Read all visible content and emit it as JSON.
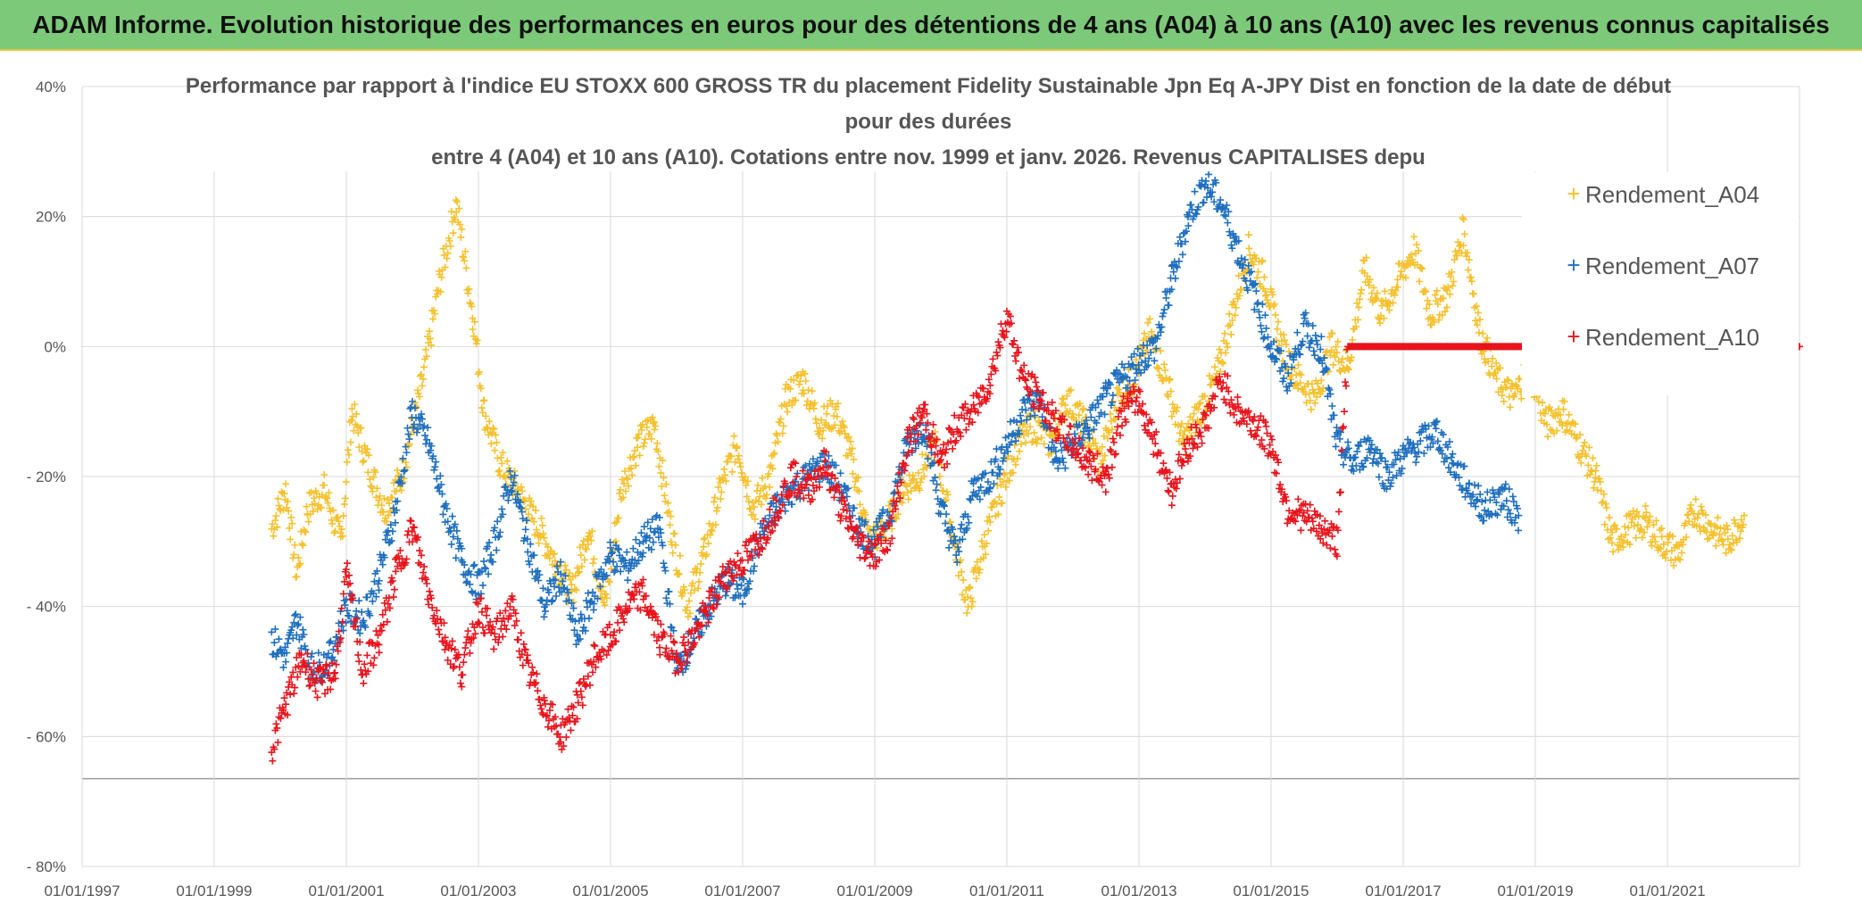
{
  "header": {
    "title": "ADAM Informe. Evolution historique des performances en euros pour des détentions de 4 ans (A04) à 10 ans (A10) avec les revenus connus capitalisés"
  },
  "colors": {
    "banner_bg": "#7cc97a",
    "A04": "#f5c12e",
    "A07": "#1f6fbf",
    "A10": "#e8141c",
    "grid": "#d9d9d9"
  },
  "chart_data": {
    "type": "scatter",
    "title_lines": [
      "Performance par rapport à l'indice EU STOXX 600 GROSS TR  du placement Fidelity Sustainable Jpn Eq A-JPY Dist en fonction de la date de début",
      "pour des durées",
      "entre 4 (A04) et 10 ans (A10). Cotations entre nov. 1999 et janv. 2026. Revenus CAPITALISES depu"
    ],
    "x_ticks": [
      "01/01/1997",
      "01/01/1999",
      "01/01/2001",
      "01/01/2003",
      "01/01/2005",
      "01/01/2007",
      "01/01/2009",
      "01/01/2011",
      "01/01/2013",
      "01/01/2015",
      "01/01/2017",
      "01/01/2019",
      "01/01/2021"
    ],
    "y_ticks": [
      "40%",
      "20%",
      "0%",
      "- 20%",
      "- 40%",
      "- 60%",
      "- 80%"
    ],
    "xlim": [
      "1997-01-01",
      "2023-01-01"
    ],
    "ylim": [
      -80,
      40
    ],
    "y_unit": "%",
    "marker": "+",
    "legend_position": "right",
    "series": [
      {
        "name": "Rendement_A04",
        "color": "#f5c12e",
        "points": [
          [
            "1999-11-15",
            -28
          ],
          [
            "2000-02-01",
            -22
          ],
          [
            "2000-04-01",
            -35
          ],
          [
            "2000-06-01",
            -25
          ],
          [
            "2000-09-01",
            -22
          ],
          [
            "2000-12-01",
            -30
          ],
          [
            "2001-02-01",
            -10
          ],
          [
            "2001-05-01",
            -18
          ],
          [
            "2001-08-01",
            -25
          ],
          [
            "2001-11-01",
            -20
          ],
          [
            "2002-03-01",
            -5
          ],
          [
            "2002-06-01",
            10
          ],
          [
            "2002-09-01",
            22
          ],
          [
            "2002-12-01",
            5
          ],
          [
            "2003-02-01",
            -10
          ],
          [
            "2003-05-01",
            -18
          ],
          [
            "2003-08-01",
            -22
          ],
          [
            "2003-12-01",
            -28
          ],
          [
            "2004-03-01",
            -33
          ],
          [
            "2004-06-01",
            -38
          ],
          [
            "2004-09-01",
            -28
          ],
          [
            "2004-12-01",
            -40
          ],
          [
            "2005-03-01",
            -22
          ],
          [
            "2005-06-01",
            -15
          ],
          [
            "2005-09-01",
            -12
          ],
          [
            "2005-12-01",
            -28
          ],
          [
            "2006-03-01",
            -40
          ],
          [
            "2006-06-01",
            -32
          ],
          [
            "2006-09-01",
            -22
          ],
          [
            "2006-12-01",
            -15
          ],
          [
            "2007-03-01",
            -25
          ],
          [
            "2007-06-01",
            -20
          ],
          [
            "2007-09-01",
            -8
          ],
          [
            "2007-12-01",
            -5
          ],
          [
            "2008-03-01",
            -12
          ],
          [
            "2008-06-01",
            -10
          ],
          [
            "2008-09-01",
            -18
          ],
          [
            "2008-12-01",
            -30
          ],
          [
            "2009-03-01",
            -28
          ],
          [
            "2009-06-01",
            -22
          ],
          [
            "2009-09-01",
            -20
          ],
          [
            "2009-12-01",
            -15
          ],
          [
            "2010-03-01",
            -28
          ],
          [
            "2010-06-01",
            -40
          ],
          [
            "2010-09-01",
            -30
          ],
          [
            "2010-12-01",
            -22
          ],
          [
            "2011-03-01",
            -15
          ],
          [
            "2011-06-01",
            -12
          ],
          [
            "2011-09-01",
            -15
          ],
          [
            "2011-12-01",
            -8
          ],
          [
            "2012-03-01",
            -12
          ],
          [
            "2012-06-01",
            -18
          ],
          [
            "2012-09-01",
            -8
          ],
          [
            "2012-12-01",
            -5
          ],
          [
            "2013-03-01",
            2
          ],
          [
            "2013-06-01",
            -5
          ],
          [
            "2013-09-01",
            -15
          ],
          [
            "2013-12-01",
            -10
          ],
          [
            "2014-03-01",
            -5
          ],
          [
            "2014-06-01",
            5
          ],
          [
            "2014-09-01",
            15
          ],
          [
            "2014-12-01",
            10
          ],
          [
            "2015-03-01",
            0
          ],
          [
            "2015-06-01",
            -5
          ],
          [
            "2015-09-01",
            -8
          ],
          [
            "2015-12-01",
            0
          ],
          [
            "2016-03-01",
            -3
          ],
          [
            "2016-06-01",
            12
          ],
          [
            "2016-09-01",
            5
          ],
          [
            "2016-12-01",
            10
          ],
          [
            "2017-03-01",
            15
          ],
          [
            "2017-06-01",
            5
          ],
          [
            "2017-09-01",
            8
          ],
          [
            "2017-12-01",
            18
          ],
          [
            "2018-03-01",
            2
          ],
          [
            "2018-06-01",
            -5
          ],
          [
            "2018-09-01",
            -8
          ],
          [
            "2018-12-01",
            -3
          ],
          [
            "2019-03-01",
            -12
          ],
          [
            "2019-06-01",
            -10
          ],
          [
            "2019-09-01",
            -15
          ],
          [
            "2019-12-01",
            -20
          ],
          [
            "2020-03-01",
            -30
          ],
          [
            "2020-06-01",
            -28
          ],
          [
            "2020-09-01",
            -27
          ],
          [
            "2020-12-01",
            -30
          ],
          [
            "2021-03-01",
            -32
          ],
          [
            "2021-06-01",
            -25
          ],
          [
            "2021-09-01",
            -28
          ],
          [
            "2021-12-01",
            -30
          ],
          [
            "2022-03-01",
            -26
          ]
        ]
      },
      {
        "name": "Rendement_A07",
        "color": "#1f6fbf",
        "points": [
          [
            "1999-11-15",
            -45
          ],
          [
            "2000-02-01",
            -48
          ],
          [
            "2000-04-01",
            -42
          ],
          [
            "2000-07-01",
            -50
          ],
          [
            "2000-10-01",
            -48
          ],
          [
            "2001-01-01",
            -40
          ],
          [
            "2001-04-01",
            -42
          ],
          [
            "2001-07-01",
            -35
          ],
          [
            "2001-10-01",
            -25
          ],
          [
            "2002-01-01",
            -10
          ],
          [
            "2002-04-01",
            -15
          ],
          [
            "2002-07-01",
            -25
          ],
          [
            "2002-10-01",
            -33
          ],
          [
            "2003-01-01",
            -37
          ],
          [
            "2003-04-01",
            -30
          ],
          [
            "2003-07-01",
            -20
          ],
          [
            "2003-10-01",
            -30
          ],
          [
            "2004-01-01",
            -40
          ],
          [
            "2004-04-01",
            -35
          ],
          [
            "2004-07-01",
            -45
          ],
          [
            "2004-10-01",
            -38
          ],
          [
            "2005-01-01",
            -32
          ],
          [
            "2005-04-01",
            -34
          ],
          [
            "2005-07-01",
            -30
          ],
          [
            "2005-10-01",
            -28
          ],
          [
            "2006-01-01",
            -50
          ],
          [
            "2006-04-01",
            -45
          ],
          [
            "2006-07-01",
            -40
          ],
          [
            "2006-10-01",
            -36
          ],
          [
            "2007-01-01",
            -38
          ],
          [
            "2007-04-01",
            -30
          ],
          [
            "2007-07-01",
            -25
          ],
          [
            "2007-10-01",
            -22
          ],
          [
            "2008-01-01",
            -20
          ],
          [
            "2008-04-01",
            -18
          ],
          [
            "2008-07-01",
            -22
          ],
          [
            "2008-10-01",
            -28
          ],
          [
            "2009-01-01",
            -30
          ],
          [
            "2009-04-01",
            -25
          ],
          [
            "2009-07-01",
            -15
          ],
          [
            "2009-10-01",
            -12
          ],
          [
            "2010-01-01",
            -25
          ],
          [
            "2010-04-01",
            -32
          ],
          [
            "2010-07-01",
            -22
          ],
          [
            "2010-10-01",
            -20
          ],
          [
            "2011-01-01",
            -15
          ],
          [
            "2011-04-01",
            -10
          ],
          [
            "2011-07-01",
            -8
          ],
          [
            "2011-10-01",
            -18
          ],
          [
            "2012-01-01",
            -15
          ],
          [
            "2012-04-01",
            -12
          ],
          [
            "2012-07-01",
            -8
          ],
          [
            "2012-10-01",
            -5
          ],
          [
            "2013-01-01",
            -2
          ],
          [
            "2013-04-01",
            0
          ],
          [
            "2013-07-01",
            10
          ],
          [
            "2013-10-01",
            20
          ],
          [
            "2014-01-01",
            25
          ],
          [
            "2014-04-01",
            22
          ],
          [
            "2014-07-01",
            15
          ],
          [
            "2014-10-01",
            8
          ],
          [
            "2015-01-01",
            0
          ],
          [
            "2015-04-01",
            -5
          ],
          [
            "2015-07-01",
            3
          ],
          [
            "2015-10-01",
            0
          ],
          [
            "2016-01-01",
            -15
          ],
          [
            "2016-04-01",
            -18
          ],
          [
            "2016-07-01",
            -15
          ],
          [
            "2016-10-01",
            -20
          ],
          [
            "2017-01-01",
            -17
          ],
          [
            "2017-04-01",
            -15
          ],
          [
            "2017-07-01",
            -13
          ],
          [
            "2017-10-01",
            -18
          ],
          [
            "2018-01-01",
            -22
          ],
          [
            "2018-04-01",
            -25
          ],
          [
            "2018-07-01",
            -23
          ],
          [
            "2018-10-01",
            -26
          ]
        ]
      },
      {
        "name": "Rendement_A10",
        "color": "#e8141c",
        "points": [
          [
            "1999-11-15",
            -62
          ],
          [
            "2000-02-01",
            -55
          ],
          [
            "2000-05-01",
            -48
          ],
          [
            "2000-08-01",
            -52
          ],
          [
            "2000-11-01",
            -50
          ],
          [
            "2001-01-01",
            -35
          ],
          [
            "2001-04-01",
            -50
          ],
          [
            "2001-07-01",
            -45
          ],
          [
            "2001-10-01",
            -35
          ],
          [
            "2002-01-01",
            -28
          ],
          [
            "2002-04-01",
            -38
          ],
          [
            "2002-07-01",
            -45
          ],
          [
            "2002-10-01",
            -50
          ],
          [
            "2003-01-01",
            -40
          ],
          [
            "2003-04-01",
            -45
          ],
          [
            "2003-07-01",
            -40
          ],
          [
            "2003-10-01",
            -50
          ],
          [
            "2004-01-01",
            -55
          ],
          [
            "2004-04-01",
            -60
          ],
          [
            "2004-07-01",
            -55
          ],
          [
            "2004-10-01",
            -48
          ],
          [
            "2005-01-01",
            -45
          ],
          [
            "2005-04-01",
            -40
          ],
          [
            "2005-07-01",
            -38
          ],
          [
            "2005-10-01",
            -45
          ],
          [
            "2006-01-01",
            -48
          ],
          [
            "2006-04-01",
            -45
          ],
          [
            "2006-07-01",
            -40
          ],
          [
            "2006-10-01",
            -35
          ],
          [
            "2007-01-01",
            -33
          ],
          [
            "2007-04-01",
            -30
          ],
          [
            "2007-07-01",
            -25
          ],
          [
            "2007-10-01",
            -20
          ],
          [
            "2008-01-01",
            -22
          ],
          [
            "2008-04-01",
            -18
          ],
          [
            "2008-07-01",
            -25
          ],
          [
            "2008-10-01",
            -30
          ],
          [
            "2009-01-01",
            -32
          ],
          [
            "2009-04-01",
            -28
          ],
          [
            "2009-07-01",
            -15
          ],
          [
            "2009-10-01",
            -10
          ],
          [
            "2010-01-01",
            -18
          ],
          [
            "2010-04-01",
            -12
          ],
          [
            "2010-07-01",
            -10
          ],
          [
            "2010-10-01",
            -5
          ],
          [
            "2011-01-01",
            5
          ],
          [
            "2011-04-01",
            -5
          ],
          [
            "2011-07-01",
            -8
          ],
          [
            "2011-10-01",
            -12
          ],
          [
            "2012-01-01",
            -15
          ],
          [
            "2012-04-01",
            -18
          ],
          [
            "2012-07-01",
            -20
          ],
          [
            "2012-10-01",
            -10
          ],
          [
            "2013-01-01",
            -8
          ],
          [
            "2013-04-01",
            -15
          ],
          [
            "2013-07-01",
            -22
          ],
          [
            "2013-10-01",
            -15
          ],
          [
            "2014-01-01",
            -12
          ],
          [
            "2014-04-01",
            -5
          ],
          [
            "2014-07-01",
            -10
          ],
          [
            "2014-10-01",
            -12
          ],
          [
            "2015-01-01",
            -15
          ],
          [
            "2015-04-01",
            -25
          ],
          [
            "2015-07-01",
            -26
          ],
          [
            "2015-10-01",
            -28
          ],
          [
            "2016-01-01",
            -30
          ],
          [
            "2016-03-01",
            0
          ],
          [
            "2016-06-01",
            0
          ],
          [
            "2016-09-01",
            0
          ],
          [
            "2016-12-01",
            0
          ],
          [
            "2017-03-01",
            0
          ],
          [
            "2017-06-01",
            0
          ],
          [
            "2017-09-01",
            0
          ],
          [
            "2017-12-01",
            0
          ],
          [
            "2018-03-01",
            0
          ],
          [
            "2018-06-01",
            0
          ],
          [
            "2018-09-01",
            0
          ],
          [
            "2023-01-01",
            0
          ]
        ]
      }
    ]
  }
}
